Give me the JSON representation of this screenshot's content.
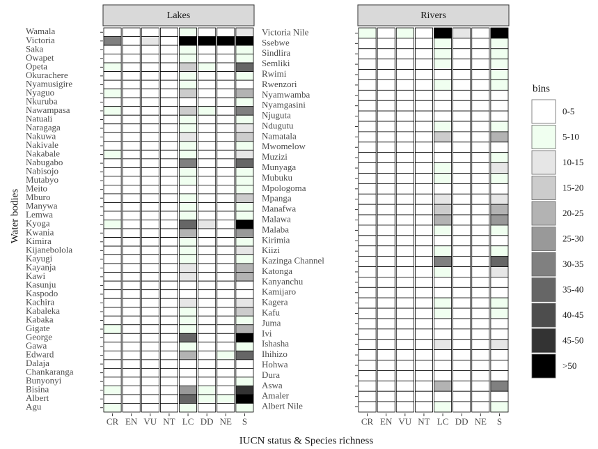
{
  "chart_data": {
    "type": "heatmap",
    "xlabel": "IUCN status & Species richness",
    "ylabel": "Water bodies",
    "x": [
      "CR",
      "EN",
      "VU",
      "NT",
      "LC",
      "DD",
      "NE",
      "S"
    ],
    "legend": {
      "title": "bins",
      "labels": [
        "0-5",
        "5-10",
        "10-15",
        "15-20",
        "20-25",
        "25-30",
        "30-35",
        "35-40",
        "40-45",
        "45-50",
        ">50"
      ],
      "colors": [
        "#ffffff",
        "#f0fff0",
        "#e6e6e6",
        "#cccccc",
        "#b3b3b3",
        "#999999",
        "#808080",
        "#666666",
        "#4d4d4d",
        "#333333",
        "#000000"
      ],
      "bin_edges": [
        0,
        5,
        10,
        15,
        20,
        25,
        30,
        35,
        40,
        45,
        50
      ]
    },
    "facets": [
      {
        "title": "Lakes",
        "y": [
          "Wamala",
          "Victoria",
          "Saka",
          "Owapet",
          "Opeta",
          "Okurachere",
          "Nyamusigire",
          "Nyaguo",
          "Nkuruba",
          "Nawampasa",
          "Natuali",
          "Naragaga",
          "Nakuwa",
          "Nakivale",
          "Nakabale",
          "Nabugabo",
          "Nabisojo",
          "Mutabyo",
          "Meito",
          "Mburo",
          "Manywa",
          "Lemwa",
          "Kyoga",
          "Kwania",
          "Kimira",
          "Kijanebolola",
          "Kayugi",
          "Kayanja",
          "Kawi",
          "Kasunju",
          "Kaspodo",
          "Kachira",
          "Kabaleka",
          "Kabaka",
          "Gigate",
          "George",
          "Gawa",
          "Edward",
          "Dalaja",
          "Chankaranga",
          "Bunyonyi",
          "Bisina",
          "Albert",
          "Agu"
        ],
        "values": [
          [
            1,
            1,
            1,
            1,
            7,
            1,
            1,
            12
          ],
          [
            30,
            1,
            12,
            1,
            52,
            52,
            52,
            52
          ],
          [
            1,
            1,
            1,
            1,
            7,
            1,
            1,
            7
          ],
          [
            1,
            1,
            1,
            1,
            7,
            1,
            1,
            7
          ],
          [
            7,
            1,
            1,
            1,
            17,
            7,
            1,
            37
          ],
          [
            1,
            1,
            1,
            1,
            7,
            1,
            1,
            7
          ],
          [
            1,
            1,
            1,
            1,
            7,
            1,
            1,
            1
          ],
          [
            7,
            1,
            1,
            1,
            17,
            1,
            1,
            22
          ],
          [
            1,
            1,
            1,
            1,
            1,
            1,
            1,
            7
          ],
          [
            7,
            1,
            1,
            1,
            17,
            7,
            1,
            32
          ],
          [
            1,
            1,
            1,
            1,
            7,
            1,
            1,
            7
          ],
          [
            1,
            1,
            1,
            1,
            7,
            1,
            1,
            12
          ],
          [
            1,
            1,
            1,
            1,
            12,
            1,
            1,
            17
          ],
          [
            1,
            1,
            1,
            1,
            7,
            1,
            1,
            7
          ],
          [
            7,
            1,
            1,
            1,
            7,
            1,
            1,
            12
          ],
          [
            1,
            1,
            1,
            1,
            32,
            1,
            1,
            37
          ],
          [
            1,
            1,
            1,
            1,
            7,
            1,
            1,
            7
          ],
          [
            1,
            1,
            1,
            1,
            7,
            1,
            1,
            7
          ],
          [
            1,
            1,
            1,
            1,
            1,
            1,
            1,
            7
          ],
          [
            1,
            1,
            1,
            1,
            7,
            1,
            1,
            17
          ],
          [
            1,
            1,
            1,
            1,
            7,
            1,
            1,
            7
          ],
          [
            1,
            1,
            1,
            1,
            7,
            1,
            1,
            7
          ],
          [
            7,
            1,
            1,
            1,
            37,
            12,
            1,
            52
          ],
          [
            1,
            1,
            1,
            1,
            22,
            1,
            1,
            27
          ],
          [
            1,
            1,
            1,
            1,
            7,
            1,
            1,
            7
          ],
          [
            1,
            1,
            1,
            1,
            7,
            1,
            1,
            12
          ],
          [
            1,
            1,
            1,
            1,
            7,
            1,
            1,
            7
          ],
          [
            1,
            1,
            1,
            1,
            12,
            1,
            1,
            22
          ],
          [
            1,
            1,
            1,
            1,
            12,
            1,
            1,
            22
          ],
          [
            1,
            1,
            1,
            1,
            1,
            1,
            1,
            1
          ],
          [
            1,
            1,
            1,
            1,
            1,
            1,
            1,
            1
          ],
          [
            1,
            1,
            1,
            1,
            12,
            1,
            1,
            12
          ],
          [
            1,
            1,
            1,
            1,
            7,
            1,
            1,
            17
          ],
          [
            1,
            1,
            1,
            1,
            7,
            1,
            1,
            7
          ],
          [
            7,
            1,
            1,
            1,
            7,
            1,
            1,
            22
          ],
          [
            1,
            1,
            1,
            1,
            37,
            1,
            1,
            52
          ],
          [
            1,
            1,
            1,
            1,
            7,
            1,
            1,
            7
          ],
          [
            1,
            1,
            1,
            1,
            22,
            1,
            7,
            37
          ],
          [
            1,
            1,
            1,
            1,
            1,
            1,
            1,
            1
          ],
          [
            1,
            1,
            1,
            1,
            1,
            1,
            1,
            1
          ],
          [
            1,
            1,
            1,
            1,
            1,
            1,
            1,
            7
          ],
          [
            7,
            1,
            1,
            1,
            27,
            7,
            1,
            47
          ],
          [
            1,
            1,
            1,
            1,
            37,
            7,
            7,
            52
          ],
          [
            7,
            1,
            1,
            1,
            7,
            1,
            1,
            7
          ]
        ]
      },
      {
        "title": "Rivers",
        "y": [
          "Victoria Nile",
          "Ssebwe",
          "Sindlira",
          "Semliki",
          "Rwimi",
          "Rwenzori",
          "Nyamwamba",
          "Nyamgasini",
          "Njuguta",
          "Ndugutu",
          "Namatala",
          "Mwomelow",
          "Muzizi",
          "Munyaga",
          "Mubuku",
          "Mpologoma",
          "Mpanga",
          "Manafwa",
          "Malawa",
          "Malaba",
          "Kirimia",
          "Kiizi",
          "Kazinga Channel",
          "Katonga",
          "Kanyanchu",
          "Kamijaro",
          "Kagera",
          "Kafu",
          "Juma",
          "Ivi",
          "Ishasha",
          "Ihihizo",
          "Hohwa",
          "Dura",
          "Aswa",
          "Amaler",
          "Albert Nile"
        ],
        "values": [
          [
            7,
            1,
            7,
            1,
            52,
            12,
            1,
            52
          ],
          [
            1,
            1,
            1,
            1,
            7,
            1,
            1,
            7
          ],
          [
            1,
            1,
            1,
            1,
            7,
            1,
            1,
            7
          ],
          [
            1,
            1,
            1,
            1,
            7,
            1,
            1,
            7
          ],
          [
            1,
            1,
            1,
            1,
            1,
            1,
            1,
            7
          ],
          [
            1,
            1,
            1,
            1,
            7,
            1,
            1,
            7
          ],
          [
            1,
            1,
            1,
            1,
            1,
            1,
            1,
            1
          ],
          [
            1,
            1,
            1,
            1,
            1,
            1,
            1,
            1
          ],
          [
            1,
            1,
            1,
            1,
            1,
            1,
            1,
            1
          ],
          [
            1,
            1,
            1,
            1,
            7,
            1,
            1,
            7
          ],
          [
            1,
            1,
            1,
            1,
            17,
            1,
            1,
            22
          ],
          [
            1,
            1,
            1,
            1,
            1,
            1,
            1,
            1
          ],
          [
            1,
            1,
            1,
            1,
            1,
            1,
            1,
            7
          ],
          [
            1,
            1,
            1,
            1,
            7,
            1,
            1,
            12
          ],
          [
            1,
            1,
            1,
            1,
            7,
            1,
            1,
            7
          ],
          [
            1,
            1,
            1,
            1,
            1,
            1,
            1,
            1
          ],
          [
            1,
            1,
            1,
            1,
            12,
            1,
            1,
            12
          ],
          [
            1,
            1,
            1,
            1,
            17,
            1,
            1,
            22
          ],
          [
            1,
            1,
            1,
            1,
            22,
            1,
            1,
            27
          ],
          [
            1,
            1,
            1,
            1,
            7,
            1,
            1,
            7
          ],
          [
            1,
            1,
            1,
            1,
            1,
            1,
            1,
            1
          ],
          [
            1,
            1,
            1,
            1,
            7,
            1,
            1,
            7
          ],
          [
            1,
            1,
            1,
            1,
            32,
            1,
            1,
            37
          ],
          [
            1,
            1,
            1,
            1,
            7,
            1,
            1,
            12
          ],
          [
            1,
            1,
            1,
            1,
            1,
            1,
            1,
            1
          ],
          [
            1,
            1,
            1,
            1,
            1,
            1,
            1,
            1
          ],
          [
            1,
            1,
            1,
            1,
            7,
            1,
            1,
            7
          ],
          [
            1,
            1,
            1,
            1,
            7,
            1,
            1,
            7
          ],
          [
            1,
            1,
            1,
            1,
            1,
            1,
            1,
            1
          ],
          [
            1,
            1,
            1,
            1,
            1,
            1,
            1,
            1
          ],
          [
            1,
            1,
            1,
            1,
            12,
            1,
            1,
            12
          ],
          [
            1,
            1,
            1,
            1,
            1,
            1,
            1,
            1
          ],
          [
            1,
            1,
            1,
            1,
            1,
            1,
            1,
            1
          ],
          [
            1,
            1,
            1,
            1,
            1,
            1,
            1,
            1
          ],
          [
            1,
            1,
            1,
            1,
            22,
            1,
            1,
            32
          ],
          [
            1,
            1,
            1,
            1,
            1,
            1,
            1,
            1
          ],
          [
            1,
            1,
            1,
            1,
            7,
            1,
            1,
            7
          ]
        ]
      }
    ]
  }
}
